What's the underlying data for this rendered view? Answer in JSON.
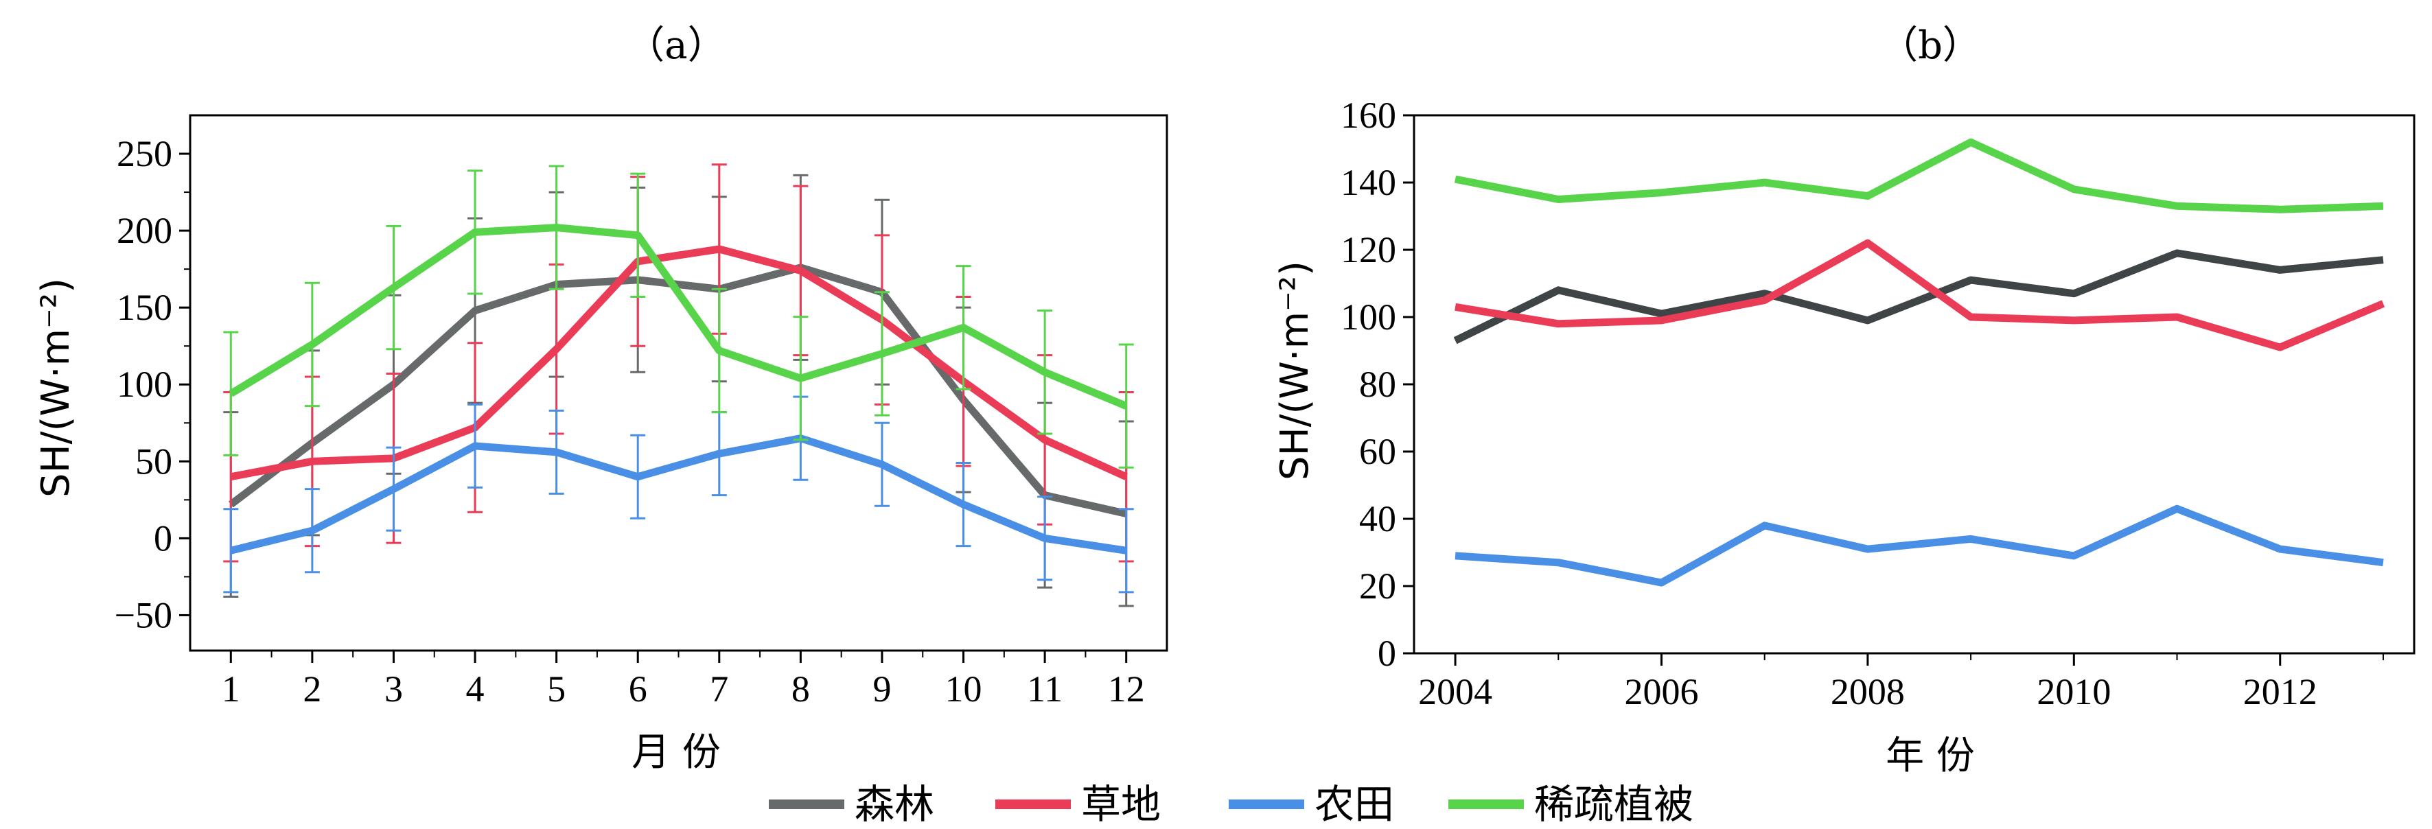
{
  "figure": {
    "legend": [
      {
        "label": "森林",
        "color": "#676a6b"
      },
      {
        "label": "草地",
        "color": "#ea3b57"
      },
      {
        "label": "农田",
        "color": "#4a8fe6"
      },
      {
        "label": "稀疏植被",
        "color": "#57d44a"
      }
    ]
  },
  "chart_data": [
    {
      "type": "line",
      "panel_label": "（a）",
      "xlabel": "月 份",
      "ylabel": "SH/(W·m⁻²)",
      "x": [
        1,
        2,
        3,
        4,
        5,
        6,
        7,
        8,
        9,
        10,
        11,
        12
      ],
      "xlim": [
        0.5,
        12.5
      ],
      "ylim": [
        -73,
        275
      ],
      "yticks": [
        -50,
        0,
        50,
        100,
        150,
        200,
        250
      ],
      "ytick_labels": [
        "−50",
        "0",
        "50",
        "100",
        "150",
        "200",
        "250"
      ],
      "error_bars": true,
      "grid": false,
      "series": [
        {
          "name": "森林",
          "color": "#676a6b",
          "values": [
            22,
            62,
            100,
            148,
            165,
            168,
            162,
            176,
            160,
            90,
            28,
            16
          ],
          "err": [
            60,
            60,
            58,
            60,
            60,
            60,
            60,
            60,
            60,
            60,
            60,
            60
          ]
        },
        {
          "name": "草地",
          "color": "#ea3b57",
          "values": [
            40,
            50,
            52,
            72,
            123,
            180,
            188,
            174,
            142,
            102,
            64,
            40
          ],
          "err": [
            55,
            55,
            55,
            55,
            55,
            55,
            55,
            55,
            55,
            55,
            55,
            55
          ]
        },
        {
          "name": "农田",
          "color": "#4a8fe6",
          "values": [
            -8,
            5,
            32,
            60,
            56,
            40,
            55,
            65,
            48,
            22,
            0,
            -8
          ],
          "err": [
            27,
            27,
            27,
            27,
            27,
            27,
            27,
            27,
            27,
            27,
            27,
            27
          ]
        },
        {
          "name": "稀疏植被",
          "color": "#57d44a",
          "values": [
            94,
            126,
            163,
            199,
            202,
            197,
            122,
            104,
            120,
            137,
            108,
            86
          ],
          "err": [
            40,
            40,
            40,
            40,
            40,
            40,
            40,
            40,
            40,
            40,
            40,
            40
          ]
        }
      ]
    },
    {
      "type": "line",
      "panel_label": "（b）",
      "xlabel": "年 份",
      "ylabel": "SH/(W·m⁻²)",
      "x": [
        2004,
        2005,
        2006,
        2007,
        2008,
        2009,
        2010,
        2011,
        2012,
        2013
      ],
      "xticks": [
        2004,
        2006,
        2008,
        2010,
        2012
      ],
      "xlim": [
        2003.6,
        2013.3
      ],
      "ylim": [
        0,
        160
      ],
      "yticks": [
        0,
        20,
        40,
        60,
        80,
        100,
        120,
        140,
        160
      ],
      "grid": false,
      "series": [
        {
          "name": "森林",
          "color": "#3f4446",
          "values": [
            93,
            108,
            101,
            107,
            99,
            111,
            107,
            119,
            114,
            117
          ]
        },
        {
          "name": "草地",
          "color": "#ea3b57",
          "values": [
            103,
            98,
            99,
            105,
            122,
            100,
            99,
            100,
            91,
            104
          ]
        },
        {
          "name": "农田",
          "color": "#4a8fe6",
          "values": [
            29,
            27,
            21,
            38,
            31,
            34,
            29,
            43,
            31,
            27
          ]
        },
        {
          "name": "稀疏植被",
          "color": "#57d44a",
          "values": [
            141,
            135,
            137,
            140,
            136,
            152,
            138,
            133,
            132,
            133
          ]
        }
      ]
    }
  ]
}
